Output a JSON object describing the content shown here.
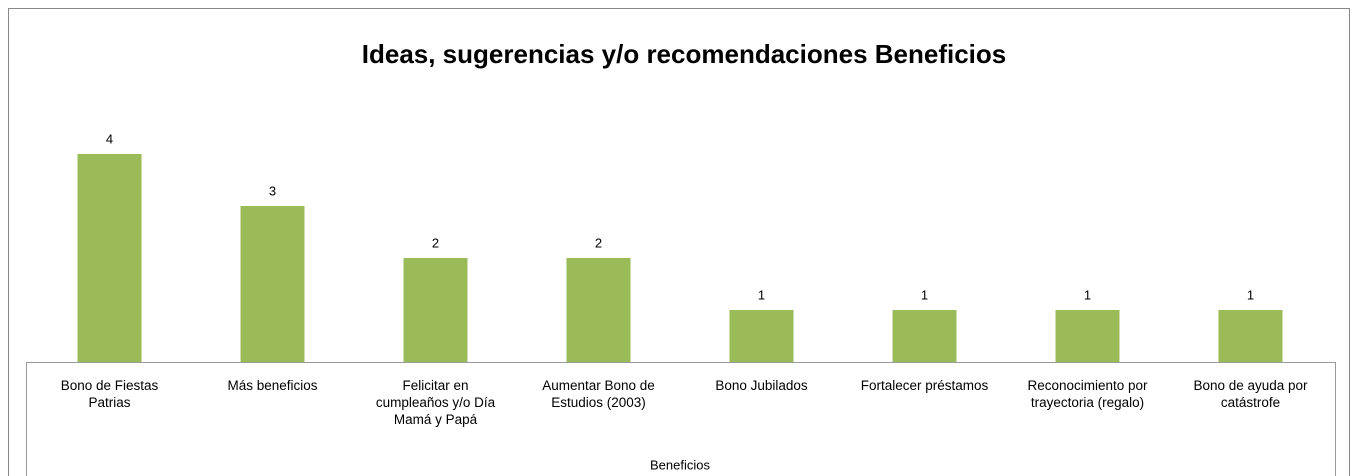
{
  "chart_data": {
    "type": "bar",
    "title": "Ideas, sugerencias y/o recomendaciones Beneficios",
    "x_label": "Beneficios",
    "categories": [
      "Bono de Fiestas Patrias",
      "Más beneficios",
      "Felicitar en cumpleaños y/o Día Mamá y Papá",
      "Aumentar Bono de Estudios (2003)",
      "Bono Jubilados",
      "Fortalecer préstamos",
      "Reconocimiento por trayectoria (regalo)",
      "Bono de ayuda por catástrofe"
    ],
    "values": [
      4,
      3,
      2,
      2,
      1,
      1,
      1,
      1
    ],
    "color": "#9bbb59",
    "ylim": [
      0,
      4
    ]
  }
}
